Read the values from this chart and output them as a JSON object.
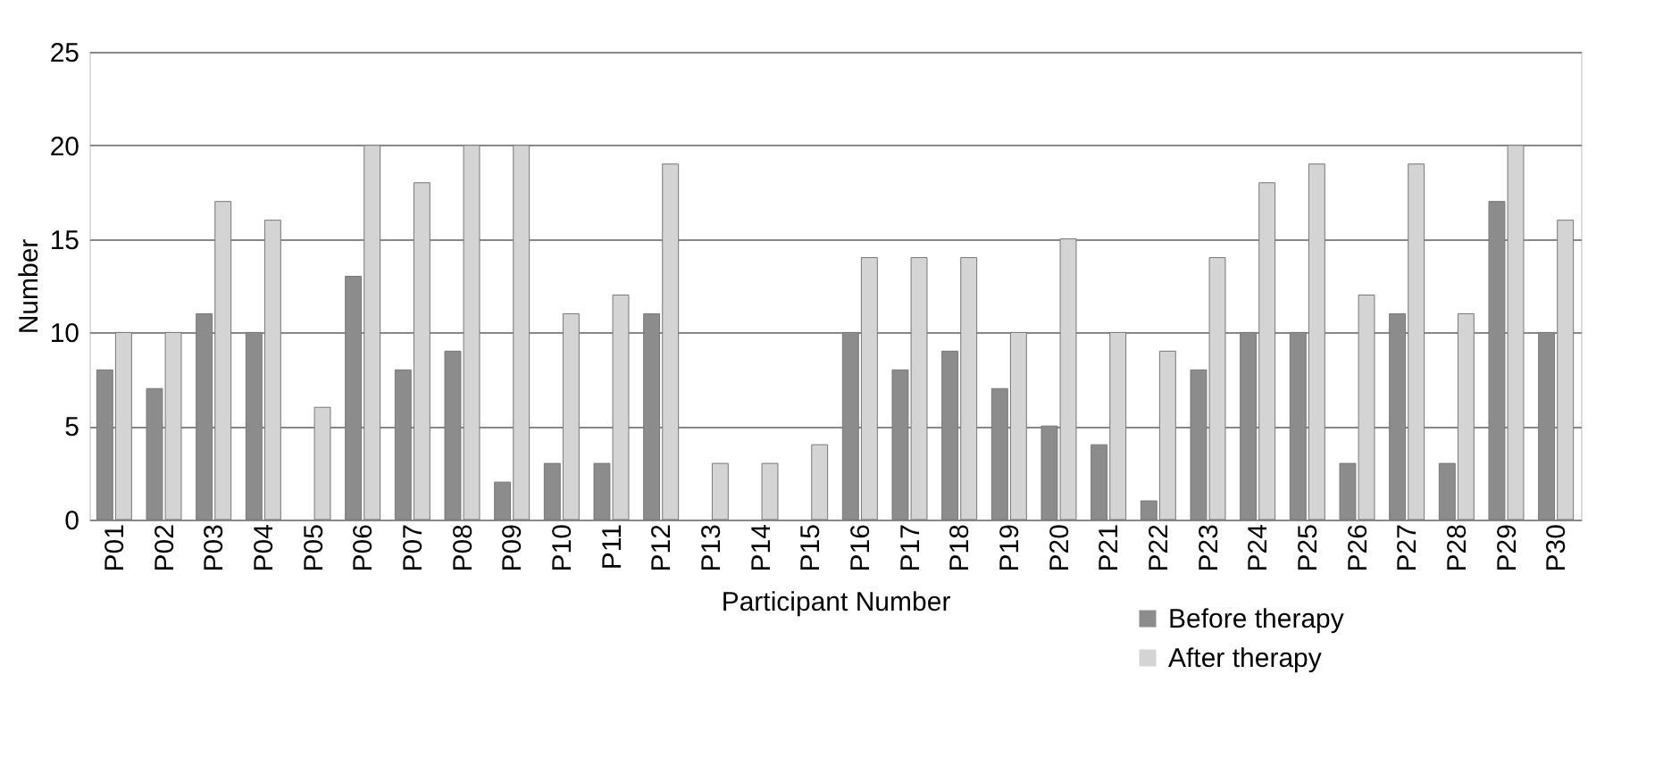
{
  "chart_data": {
    "type": "bar",
    "xlabel": "Participant Number",
    "ylabel": "Number",
    "categories": [
      "P01",
      "P02",
      "P03",
      "P04",
      "P05",
      "P06",
      "P07",
      "P08",
      "P09",
      "P10",
      "P11",
      "P12",
      "P13",
      "P14",
      "P15",
      "P16",
      "P17",
      "P18",
      "P19",
      "P20",
      "P21",
      "P22",
      "P23",
      "P24",
      "P25",
      "P26",
      "P27",
      "P28",
      "P29",
      "P30"
    ],
    "series": [
      {
        "name": "Before therapy",
        "color": "#8c8c8c",
        "values": [
          8,
          7,
          11,
          10,
          null,
          13,
          8,
          9,
          2,
          3,
          3,
          11,
          null,
          null,
          null,
          10,
          8,
          9,
          7,
          5,
          4,
          1,
          8,
          10,
          10,
          3,
          11,
          3,
          17,
          10
        ]
      },
      {
        "name": "After therapy",
        "color": "#d4d4d4",
        "values": [
          10,
          10,
          17,
          16,
          6,
          20,
          18,
          20,
          20,
          11,
          12,
          19,
          3,
          3,
          4,
          14,
          14,
          14,
          10,
          15,
          10,
          9,
          14,
          18,
          19,
          12,
          19,
          11,
          20,
          16
        ]
      }
    ],
    "ylim": [
      0,
      25
    ],
    "yticks": [
      0,
      5,
      10,
      15,
      20,
      25
    ],
    "grid": "y",
    "legend": "bottom right"
  }
}
